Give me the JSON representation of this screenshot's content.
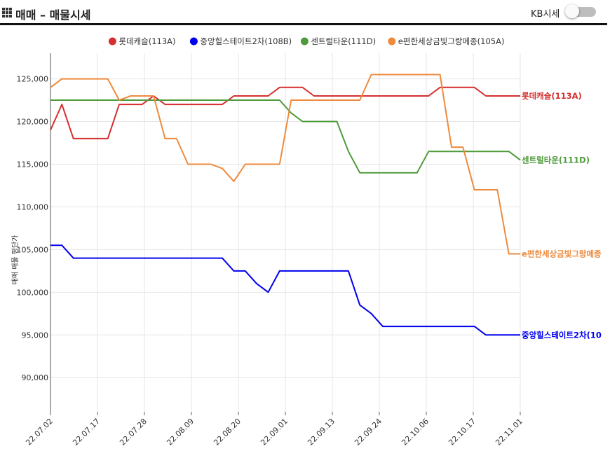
{
  "header": {
    "title": "매매 – 매물시세",
    "menu_icon": "grid-menu-icon",
    "toggle_label": "KB시세",
    "toggle_on": false
  },
  "chart_data": {
    "type": "line",
    "ylabel": "매매 매물 평단가",
    "ylim": [
      86000,
      128000
    ],
    "yticks": [
      90000,
      95000,
      100000,
      105000,
      110000,
      115000,
      120000,
      125000
    ],
    "ytick_labels": [
      "90,000",
      "95,000",
      "100,000",
      "105,000",
      "110,000",
      "115,000",
      "120,000",
      "125,000"
    ],
    "xticks": [
      "22.07.02",
      "22.07.17",
      "22.07.28",
      "22.08.09",
      "22.08.20",
      "22.09.01",
      "22.09.13",
      "22.09.24",
      "22.10.06",
      "22.10.17",
      "22.11.01"
    ],
    "grid": true,
    "legend_position": "top",
    "series": [
      {
        "name": "롯데캐슬(113A)",
        "color": "#d62f2f",
        "values": [
          119000,
          122000,
          118000,
          118000,
          118000,
          118000,
          122000,
          122000,
          122000,
          123000,
          122000,
          122000,
          122000,
          122000,
          122000,
          122000,
          123000,
          123000,
          123000,
          123000,
          124000,
          124000,
          124000,
          123000,
          123000,
          123000,
          123000,
          123000,
          123000,
          123000,
          123000,
          123000,
          123000,
          123000,
          124000,
          124000,
          124000,
          124000,
          123000,
          123000,
          123000,
          123000
        ]
      },
      {
        "name": "중앙힐스테이트2차(108B)",
        "color": "#0000ee",
        "values": [
          105500,
          105500,
          104000,
          104000,
          104000,
          104000,
          104000,
          104000,
          104000,
          104000,
          104000,
          104000,
          104000,
          104000,
          104000,
          104000,
          102500,
          102500,
          101000,
          100000,
          102500,
          102500,
          102500,
          102500,
          102500,
          102500,
          102500,
          98500,
          97500,
          96000,
          96000,
          96000,
          96000,
          96000,
          96000,
          96000,
          96000,
          96000,
          95000,
          95000,
          95000,
          95000
        ]
      },
      {
        "name": "센트럴타운(111D)",
        "color": "#4e9a3a",
        "values": [
          122500,
          122500,
          122500,
          122500,
          122500,
          122500,
          122500,
          122500,
          122500,
          122500,
          122500,
          122500,
          122500,
          122500,
          122500,
          122500,
          122500,
          122500,
          122500,
          122500,
          122500,
          121000,
          120000,
          120000,
          120000,
          120000,
          116500,
          114000,
          114000,
          114000,
          114000,
          114000,
          114000,
          116500,
          116500,
          116500,
          116500,
          116500,
          116500,
          116500,
          116500,
          115500
        ]
      },
      {
        "name": "e편한세상금빛그랑메종(105A)",
        "color": "#ee8a3c",
        "values": [
          124000,
          125000,
          125000,
          125000,
          125000,
          125000,
          122500,
          123000,
          123000,
          123000,
          118000,
          118000,
          115000,
          115000,
          115000,
          114500,
          113000,
          115000,
          115000,
          115000,
          115000,
          122500,
          122500,
          122500,
          122500,
          122500,
          122500,
          122500,
          125500,
          125500,
          125500,
          125500,
          125500,
          125500,
          125500,
          117000,
          117000,
          112000,
          112000,
          112000,
          104500,
          104500
        ]
      }
    ],
    "end_labels": [
      "롯데캐슬(113A)",
      "센트럴타운(111D)",
      "e편한세상금빛그랑메종",
      "중앙힐스테이트2차(10"
    ]
  }
}
